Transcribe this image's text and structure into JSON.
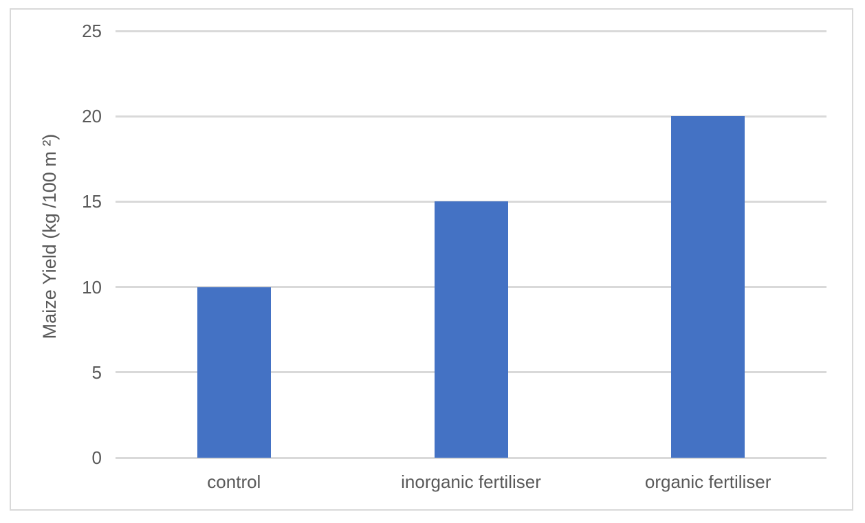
{
  "chart_data": {
    "type": "bar",
    "title": "",
    "categories": [
      "control",
      "inorganic fertiliser",
      "organic fertiliser"
    ],
    "values": [
      10,
      15,
      20
    ],
    "xlabel": "",
    "ylabel": "Maize Yield (kg /100 m ²)",
    "ylim": [
      0,
      25
    ],
    "yticks": [
      0,
      5,
      10,
      15,
      20,
      25
    ],
    "grid": "horizontal",
    "legend_position": "none",
    "colors": {
      "bar": "#4472C4",
      "gridline": "#D9D9D9",
      "axis_text": "#595959",
      "frame_border": "#D9D9D9",
      "background": "#FFFFFF"
    }
  }
}
